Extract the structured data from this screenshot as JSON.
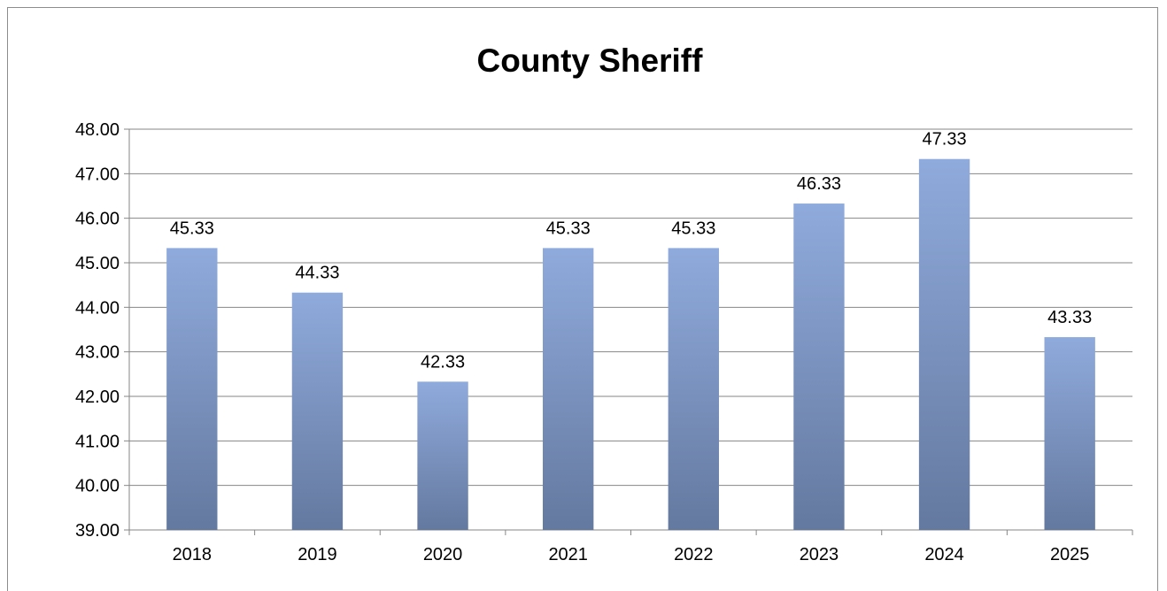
{
  "chart_data": {
    "type": "bar",
    "title": "County Sheriff",
    "categories": [
      "2018",
      "2019",
      "2020",
      "2021",
      "2022",
      "2023",
      "2024",
      "2025"
    ],
    "values": [
      45.33,
      44.33,
      42.33,
      45.33,
      45.33,
      46.33,
      47.33,
      43.33
    ],
    "data_labels": [
      "45.33",
      "44.33",
      "42.33",
      "45.33",
      "45.33",
      "46.33",
      "47.33",
      "43.33"
    ],
    "y_ticks": [
      "39.00",
      "40.00",
      "41.00",
      "42.00",
      "43.00",
      "44.00",
      "45.00",
      "46.00",
      "47.00",
      "48.00"
    ],
    "ylim": [
      39,
      48
    ],
    "grid": true,
    "legend": "none",
    "xlabel": "",
    "ylabel": "",
    "colors": {
      "bar_top": "#8faadc",
      "bar_bottom": "#64799f",
      "grid": "#868686",
      "axis": "#868686"
    }
  }
}
